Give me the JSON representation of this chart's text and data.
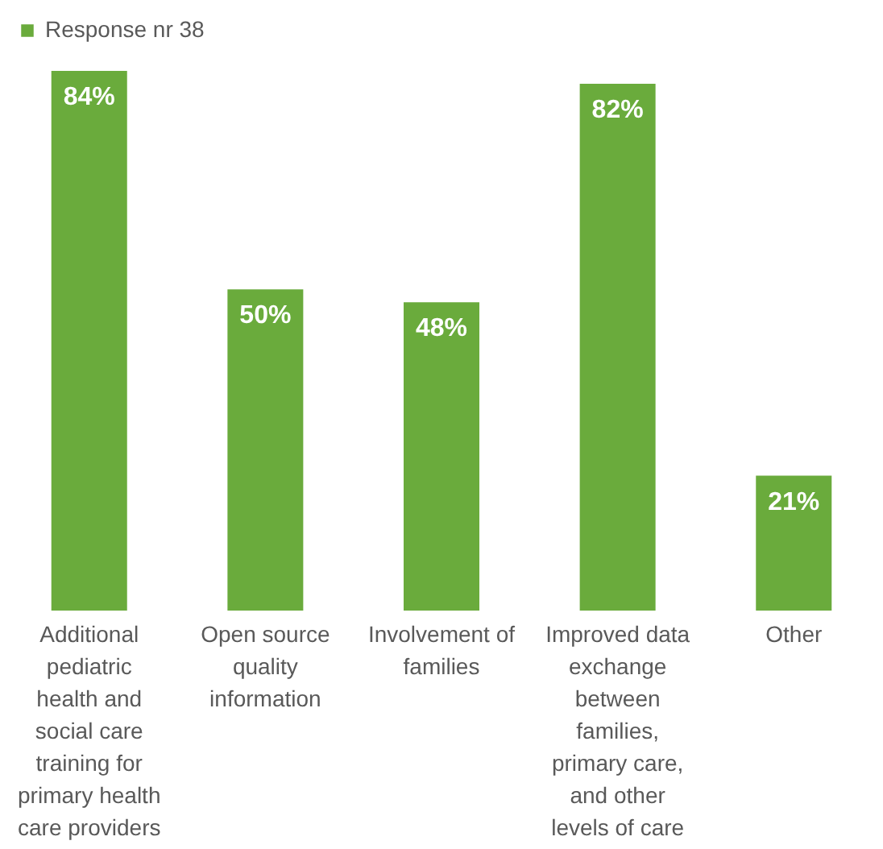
{
  "chart_data": {
    "type": "bar",
    "categories": [
      "Additional pediatric health and social care training for primary health care providers",
      "Open source quality information",
      "Involvement of families",
      "Improved data exchange between families, primary care, and other levels of care",
      "Other"
    ],
    "series": [
      {
        "name": "Response nr 38",
        "color": "#6aab3c",
        "values": [
          84,
          50,
          48,
          82,
          21
        ],
        "value_labels": [
          "84%",
          "50%",
          "48%",
          "82%",
          "21%"
        ]
      }
    ],
    "legend": "top",
    "grid": false
  }
}
